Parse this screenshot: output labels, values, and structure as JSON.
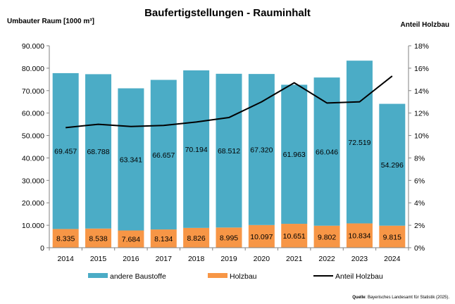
{
  "chart_data": {
    "type": "bar",
    "title": "Baufertigstellungen - Rauminhalt",
    "ylabel": "Umbauter Raum [1000 m³]",
    "y2label": "Anteil Holzbau",
    "categories": [
      "2014",
      "2015",
      "2016",
      "2017",
      "2018",
      "2019",
      "2020",
      "2021",
      "2022",
      "2023",
      "2024"
    ],
    "stacked": true,
    "ylim": [
      0,
      90000
    ],
    "y2lim": [
      0,
      18
    ],
    "yticks": [
      "0",
      "10.000",
      "20.000",
      "30.000",
      "40.000",
      "50.000",
      "60.000",
      "70.000",
      "80.000",
      "90.000"
    ],
    "y2ticks": [
      "0%",
      "2%",
      "4%",
      "6%",
      "8%",
      "10%",
      "12%",
      "14%",
      "16%",
      "18%"
    ],
    "series": [
      {
        "name": "Holzbau",
        "kind": "bar",
        "color": "#f79646",
        "values": [
          8335,
          8538,
          7684,
          8134,
          8826,
          8995,
          10097,
          10651,
          9802,
          10834,
          9815
        ],
        "labels": [
          "8.335",
          "8.538",
          "7.684",
          "8.134",
          "8.826",
          "8.995",
          "10.097",
          "10.651",
          "9.802",
          "10.834",
          "9.815"
        ]
      },
      {
        "name": "andere Baustoffe",
        "kind": "bar",
        "color": "#4bacc6",
        "values": [
          69457,
          68788,
          63341,
          66657,
          70194,
          68512,
          67320,
          61963,
          66046,
          72519,
          54296
        ],
        "labels": [
          "69.457",
          "68.788",
          "63.341",
          "66.657",
          "70.194",
          "68.512",
          "67.320",
          "61.963",
          "66.046",
          "72.519",
          "54.296"
        ]
      },
      {
        "name": "Anteil Holzbau",
        "kind": "line",
        "axis": "right",
        "color": "#000000",
        "values": [
          10.7,
          11.0,
          10.8,
          10.9,
          11.2,
          11.6,
          13.0,
          14.7,
          12.9,
          13.0,
          15.3
        ]
      }
    ],
    "legend": {
      "position": "bottom",
      "entries": [
        "andere Baustoffe",
        "Holzbau",
        "Anteil Holzbau"
      ]
    },
    "grid": false
  },
  "source": {
    "prefix": "Quelle",
    "text": ": Bayerisches Landesamt für Statistik (2025)."
  }
}
